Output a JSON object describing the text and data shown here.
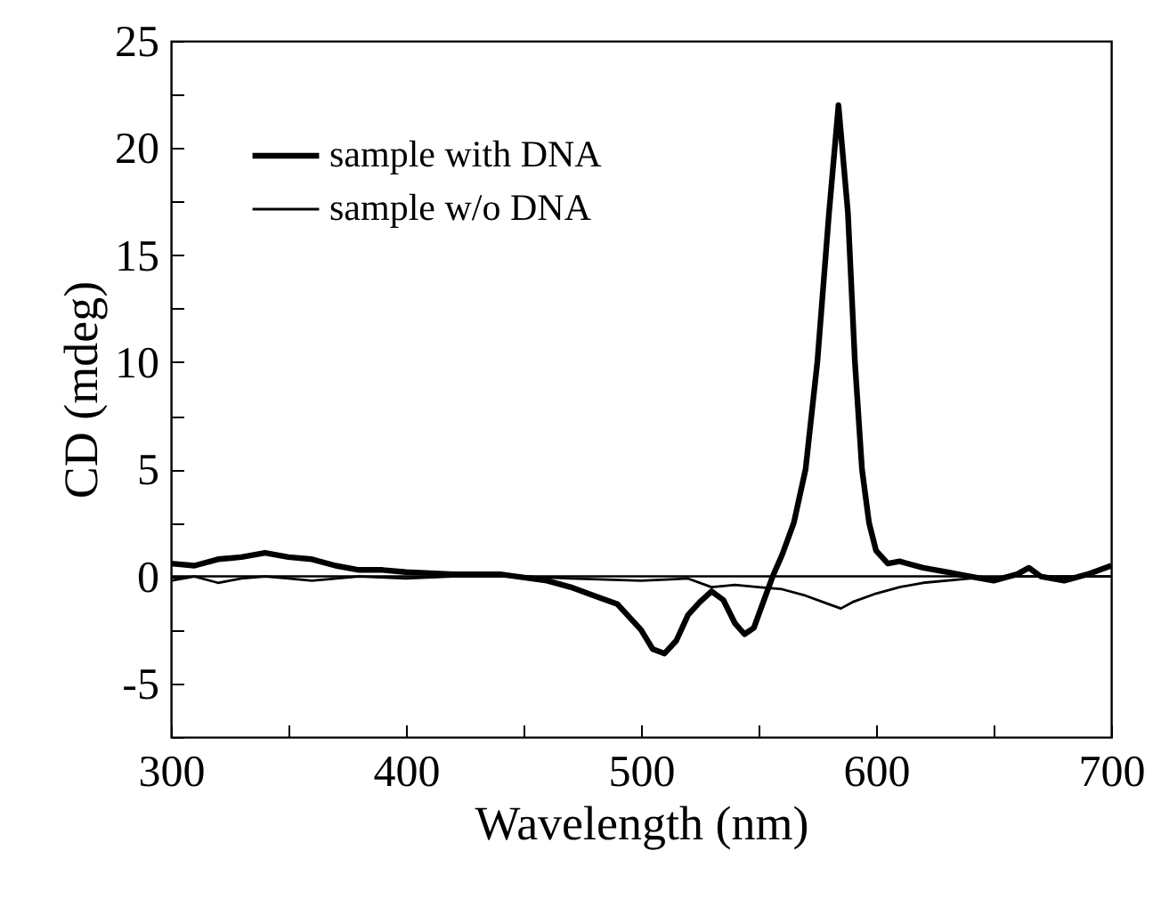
{
  "chart_data": {
    "type": "line",
    "xlabel": "Wavelength (nm)",
    "ylabel": "CD (mdeg)",
    "xlim": [
      300,
      700
    ],
    "ylim": [
      -7.5,
      25
    ],
    "xticks": [
      300,
      {
        "value": 350,
        "label": null
      },
      400,
      {
        "value": 450,
        "label": null
      },
      500,
      {
        "value": 550,
        "label": null
      },
      600,
      {
        "value": 650,
        "label": null
      },
      700
    ],
    "yticks": [
      {
        "value": -7.5,
        "label": null
      },
      -5,
      {
        "value": -2.5,
        "label": null
      },
      0,
      {
        "value": 2.5,
        "label": null
      },
      5,
      {
        "value": 7.5,
        "label": null
      },
      10,
      {
        "value": 12.5,
        "label": null
      },
      15,
      {
        "value": 17.5,
        "label": null
      },
      20,
      {
        "value": 22.5,
        "label": null
      },
      25
    ],
    "legend": "top left",
    "grid": false,
    "line_style": "solid",
    "ref_lines": [
      {
        "axis": "y",
        "value": 0,
        "label": null,
        "color": "#000000"
      }
    ],
    "series": [
      {
        "name": "sample with DNA",
        "color": "#000000",
        "x": [
          300,
          310,
          320,
          330,
          340,
          350,
          360,
          370,
          380,
          390,
          400,
          420,
          440,
          460,
          470,
          480,
          490,
          500,
          505,
          510,
          515,
          520,
          525,
          530,
          535,
          540,
          544,
          548,
          552,
          556,
          560,
          565,
          570,
          575,
          580,
          584,
          588,
          591,
          594,
          597,
          600,
          605,
          610,
          620,
          630,
          640,
          650,
          660,
          665,
          670,
          680,
          690,
          700
        ],
        "values": [
          0.6,
          0.5,
          0.8,
          0.9,
          1.1,
          0.9,
          0.8,
          0.5,
          0.3,
          0.3,
          0.2,
          0.1,
          0.1,
          -0.2,
          -0.5,
          -0.9,
          -1.3,
          -2.5,
          -3.4,
          -3.6,
          -3.0,
          -1.8,
          -1.2,
          -0.7,
          -1.1,
          -2.2,
          -2.7,
          -2.4,
          -1.2,
          0,
          1.0,
          2.5,
          5,
          10,
          17,
          22,
          17,
          10,
          5,
          2.5,
          1.2,
          0.6,
          0.7,
          0.4,
          0.2,
          0,
          -0.2,
          0.1,
          0.4,
          0,
          -0.2,
          0.1,
          0.5
        ]
      },
      {
        "name": "sample w/o DNA",
        "color": "#000000",
        "x": [
          300,
          310,
          320,
          330,
          340,
          350,
          360,
          380,
          400,
          420,
          450,
          470,
          500,
          520,
          530,
          540,
          550,
          560,
          570,
          580,
          585,
          590,
          600,
          610,
          620,
          640,
          660,
          700
        ],
        "values": [
          -0.2,
          0,
          -0.3,
          -0.1,
          0,
          -0.1,
          -0.2,
          0,
          -0.1,
          0,
          0,
          -0.1,
          -0.2,
          -0.1,
          -0.5,
          -0.4,
          -0.5,
          -0.6,
          -0.9,
          -1.3,
          -1.5,
          -1.2,
          -0.8,
          -0.5,
          -0.3,
          -0.1,
          0,
          0
        ]
      }
    ]
  }
}
